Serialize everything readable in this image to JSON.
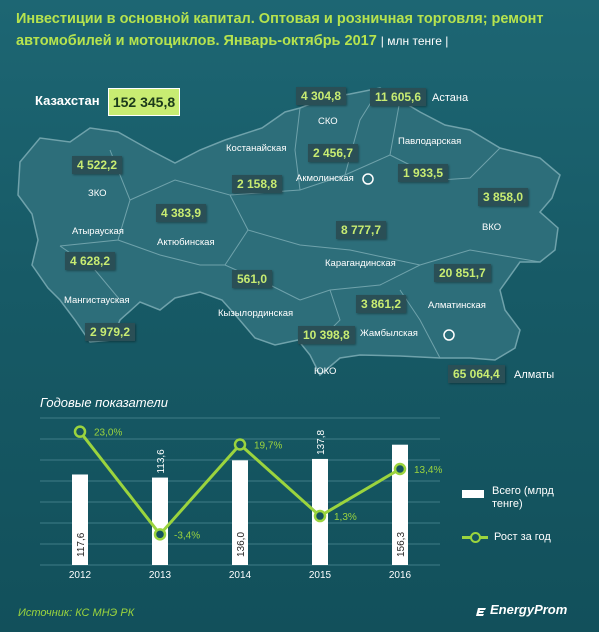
{
  "title": "Инвестиции в основной капитал. Оптовая и розничная торговля; ремонт автомобилей и мотоциклов. Январь-октябрь 2017",
  "unit": "| млн тенге |",
  "kazakhstan": {
    "label": "Казахстан",
    "value": "152 345,8"
  },
  "regions": [
    {
      "name": "СКО",
      "value": "4 304,8"
    },
    {
      "name": "Астана",
      "value": "11 605,6"
    },
    {
      "name": "Павлодарская",
      "value": "1 933,5"
    },
    {
      "name": "Костанайская",
      "value": "2 158,8"
    },
    {
      "name": "Акмолинская",
      "value": "2 456,7"
    },
    {
      "name": "ЗКО",
      "value": "4 522,2"
    },
    {
      "name": "Актюбинская",
      "value": "4 383,9"
    },
    {
      "name": "Атырауская",
      "value": "4 628,2"
    },
    {
      "name": "ВКО",
      "value": "3 858,0"
    },
    {
      "name": "Карагандинская",
      "value": "8 777,7"
    },
    {
      "name": "Мангистауская",
      "value": "2 979,2"
    },
    {
      "name": "Кызылординская",
      "value": "561,0"
    },
    {
      "name": "Алматинская",
      "value": "20 851,7"
    },
    {
      "name": "Жамбылская",
      "value": "3 861,2"
    },
    {
      "name": "ЮКО",
      "value": "10 398,8"
    },
    {
      "name": "Алматы",
      "value": "65 064,4"
    }
  ],
  "chart_data": {
    "type": "bar",
    "title": "Годовые показатели",
    "categories": [
      "2012",
      "2013",
      "2014",
      "2015",
      "2016"
    ],
    "series": [
      {
        "name": "Всего (млрд тенге)",
        "values": [
          117.6,
          113.6,
          136.0,
          137.8,
          156.3
        ],
        "labels": [
          "117,6",
          "113,6",
          "136,0",
          "137,8",
          "156,3"
        ]
      },
      {
        "name": "Рост за год",
        "values": [
          23.0,
          -3.4,
          19.7,
          1.3,
          13.4
        ],
        "labels": [
          "23,0%",
          "-3,4%",
          "19,7%",
          "1,3%",
          "13,4%"
        ]
      }
    ],
    "grid": true,
    "legend": "right"
  },
  "colors": {
    "accent": "#b6e34e",
    "line": "#9bd43e",
    "background": "#15535f"
  },
  "source": "Источник: КС МНЭ РК",
  "logo": "EnergyProm"
}
